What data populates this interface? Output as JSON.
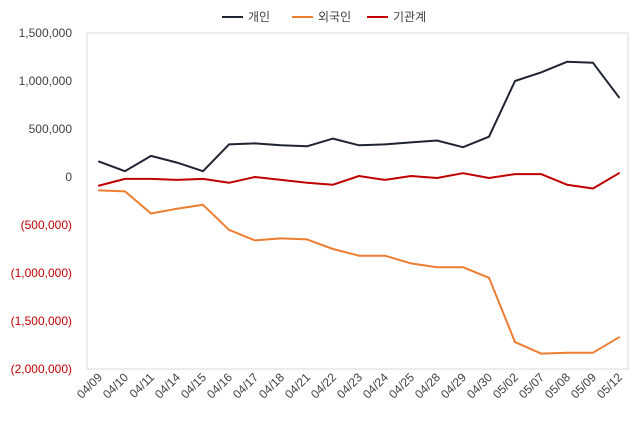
{
  "chart_data": {
    "type": "line",
    "title": "",
    "xlabel": "",
    "ylabel": "",
    "ylim": [
      -2000000,
      1500000
    ],
    "yticks": [
      1500000,
      1000000,
      500000,
      0,
      -500000,
      -1000000,
      -1500000,
      -2000000
    ],
    "ytick_labels": [
      "1,500,000",
      "1,000,000",
      "500,000",
      "0",
      "(500,000)",
      "(1,000,000)",
      "(1,500,000)",
      "(2,000,000)"
    ],
    "categories": [
      "04/09",
      "04/10",
      "04/11",
      "04/14",
      "04/15",
      "04/16",
      "04/17",
      "04/18",
      "04/21",
      "04/22",
      "04/23",
      "04/24",
      "04/25",
      "04/28",
      "04/29",
      "04/30",
      "05/02",
      "05/07",
      "05/08",
      "05/09",
      "05/12"
    ],
    "legend_position": "top-center",
    "series": [
      {
        "name": "개인",
        "color": "#1f2433",
        "values": [
          160000,
          60000,
          220000,
          150000,
          60000,
          340000,
          350000,
          330000,
          320000,
          400000,
          330000,
          340000,
          360000,
          380000,
          310000,
          420000,
          1000000,
          1090000,
          1200000,
          1190000,
          830000
        ]
      },
      {
        "name": "외국인",
        "color": "#ed7d31",
        "values": [
          -140000,
          -150000,
          -380000,
          -330000,
          -290000,
          -550000,
          -660000,
          -640000,
          -650000,
          -750000,
          -820000,
          -820000,
          -900000,
          -940000,
          -940000,
          -1050000,
          -1720000,
          -1840000,
          -1830000,
          -1830000,
          -1670000
        ]
      },
      {
        "name": "기관계",
        "color": "#c00000",
        "values": [
          -90000,
          -20000,
          -20000,
          -30000,
          -20000,
          -60000,
          0,
          -30000,
          -60000,
          -80000,
          10000,
          -30000,
          10000,
          -10000,
          40000,
          -10000,
          30000,
          30000,
          -80000,
          -120000,
          40000
        ]
      }
    ],
    "negative_tick_color": "#c00000",
    "positive_tick_color": "#404040",
    "axis_color": "#d9d9d9"
  }
}
